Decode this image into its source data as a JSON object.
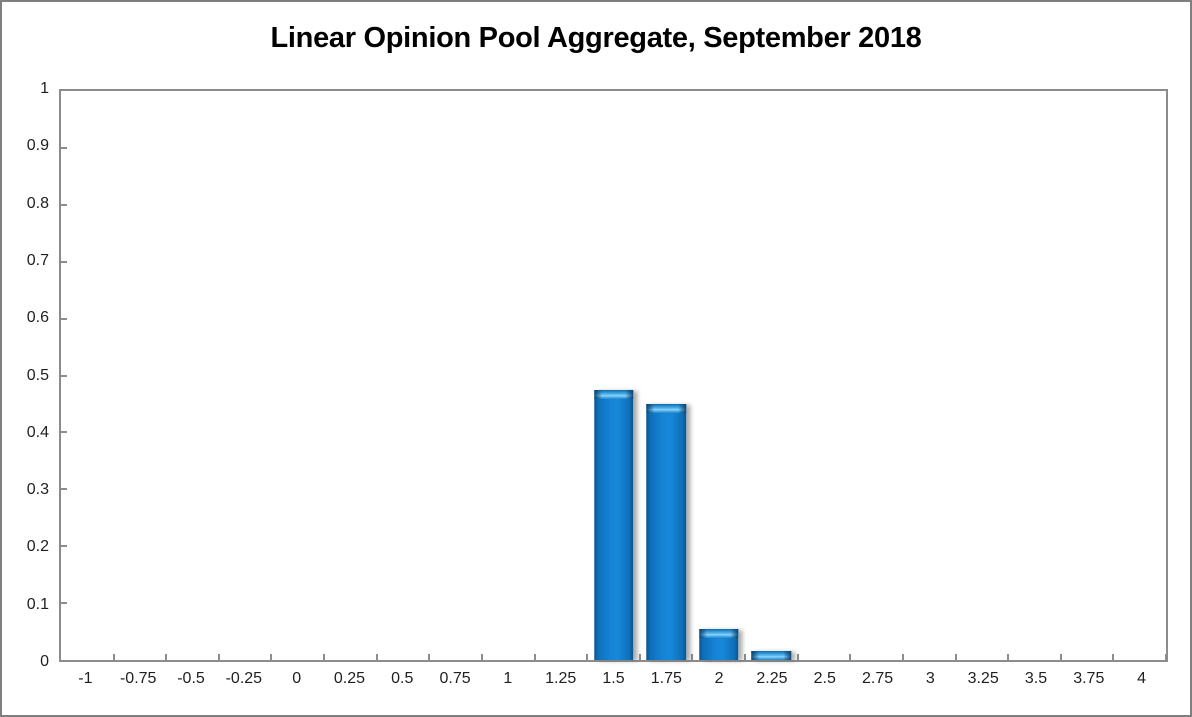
{
  "title": "Linear Opinion Pool Aggregate, September 2018",
  "colors": {
    "background": "#ffffff",
    "frame_border": "#7f7f7f",
    "axis": "#8c8c8c",
    "text": "#1f1f1f",
    "bar_main": "#1583d6",
    "bar_edge": "#09538c",
    "bar_highlight": "#55b9f4"
  },
  "chart_data": {
    "type": "bar",
    "title": "Linear Opinion Pool Aggregate, September 2018",
    "categories": [
      "-1",
      "-0.75",
      "-0.5",
      "-0.25",
      "0",
      "0.25",
      "0.5",
      "0.75",
      "1",
      "1.25",
      "1.5",
      "1.75",
      "2",
      "2.25",
      "2.5",
      "2.75",
      "3",
      "3.25",
      "3.5",
      "3.75",
      "4"
    ],
    "values": [
      0,
      0,
      0,
      0,
      0,
      0,
      0,
      0,
      0,
      0,
      0.475,
      0.45,
      0.055,
      0.015,
      0,
      0,
      0,
      0,
      0,
      0,
      0
    ],
    "xlabel": "",
    "ylabel": "",
    "ylim": [
      0,
      1
    ],
    "yticks": [
      0,
      0.1,
      0.2,
      0.3,
      0.4,
      0.5,
      0.6,
      0.7,
      0.8,
      0.9,
      1
    ],
    "ytick_labels": [
      "0",
      "0.1",
      "0.2",
      "0.3",
      "0.4",
      "0.5",
      "0.6",
      "0.7",
      "0.8",
      "0.9",
      "1"
    ],
    "grid": false,
    "legend": null,
    "bar_width_fraction": 0.75
  }
}
